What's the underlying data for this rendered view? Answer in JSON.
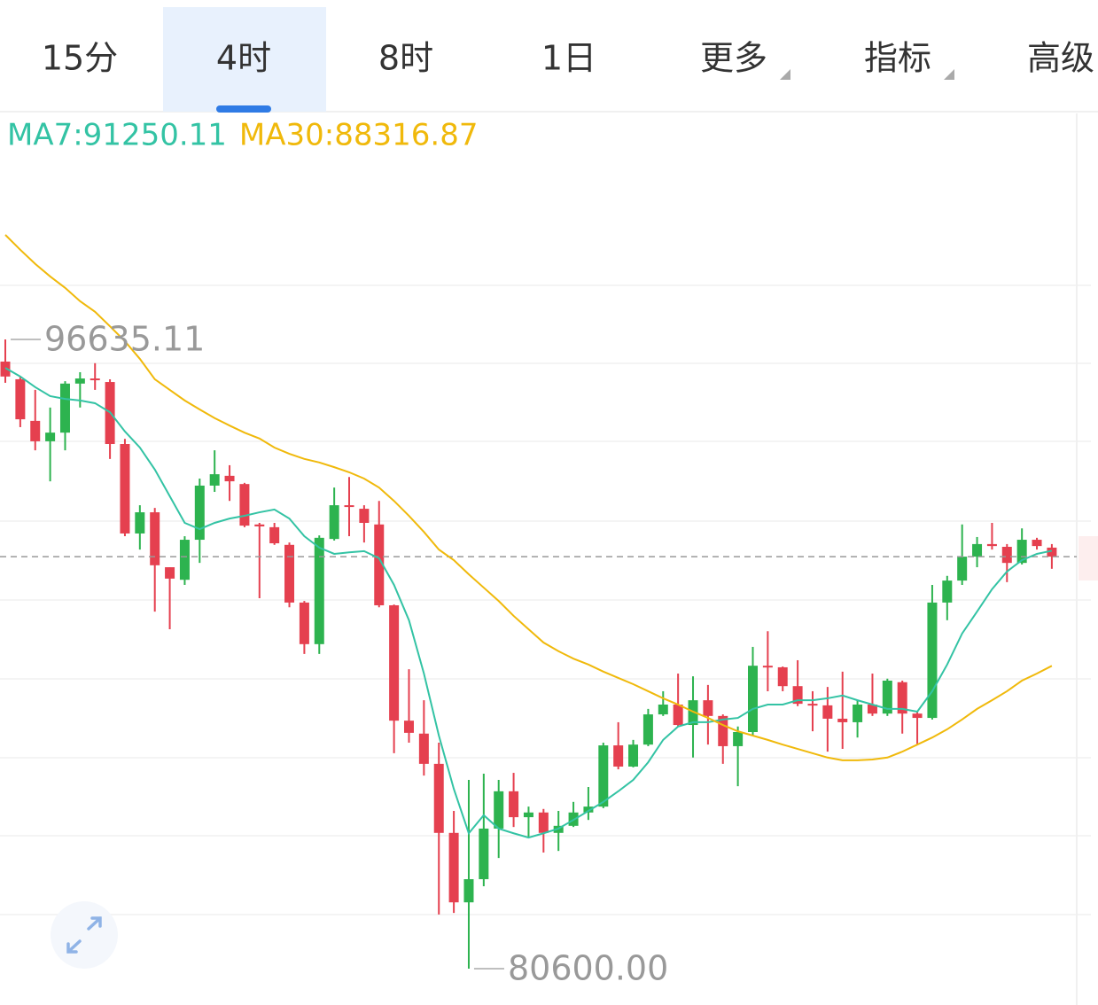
{
  "tabs": [
    "15分",
    "4时",
    "8时",
    "1日",
    "更多",
    "指标",
    "高级"
  ],
  "selected_tab": 1,
  "chart_data": {
    "type": "candlestick",
    "up_color": "#2db34f",
    "down_color": "#e5404f",
    "open": [
      96070,
      95620,
      94560,
      94040,
      94260,
      95510,
      95640,
      95550,
      93970,
      91690,
      92230,
      90830,
      90510,
      91530,
      92910,
      93160,
      92950,
      91920,
      91850,
      91400,
      89930,
      88870,
      91550,
      92410,
      92320,
      91920,
      89860,
      86920,
      86590,
      85820,
      84060,
      82290,
      82880,
      84170,
      85120,
      84460,
      84580,
      84060,
      84240,
      84580,
      84730,
      86290,
      85750,
      86310,
      87080,
      87330,
      86810,
      87440,
      87040,
      86270,
      86630,
      88320,
      88280,
      87800,
      87350,
      87310,
      86970,
      86880,
      87330,
      87100,
      87900,
      87100,
      86990,
      89930,
      90490,
      91100,
      91420,
      91350,
      90940,
      91530,
      91330
    ],
    "close": [
      95690,
      94600,
      94040,
      94260,
      95510,
      95640,
      95600,
      93970,
      91690,
      92230,
      90880,
      90540,
      91530,
      92910,
      93200,
      93020,
      91890,
      91870,
      91440,
      89930,
      88870,
      91580,
      92410,
      92370,
      91960,
      89860,
      86920,
      86610,
      85820,
      84060,
      82290,
      82880,
      84170,
      85120,
      84460,
      84580,
      84060,
      84240,
      84580,
      84730,
      86290,
      85750,
      86310,
      87080,
      87330,
      86810,
      87440,
      87040,
      86270,
      86630,
      88320,
      88280,
      87800,
      87350,
      87310,
      86970,
      86880,
      87330,
      87100,
      87940,
      87100,
      86990,
      89930,
      90490,
      91100,
      91420,
      91370,
      90940,
      91530,
      91370,
      91100
    ],
    "high": [
      96635.11,
      95690,
      95350,
      94900,
      95570,
      95800,
      96030,
      95620,
      94100,
      92410,
      92340,
      90830,
      91620,
      93090,
      93810,
      93430,
      92980,
      91960,
      91960,
      91460,
      89970,
      91640,
      92860,
      93130,
      92410,
      92520,
      89880,
      88230,
      87440,
      86360,
      84620,
      85410,
      85570,
      85410,
      85590,
      84730,
      84670,
      84620,
      84850,
      85230,
      86360,
      86880,
      86430,
      87220,
      87670,
      88120,
      88050,
      87830,
      87080,
      86770,
      88800,
      89200,
      88300,
      88460,
      87670,
      87780,
      88170,
      87440,
      88120,
      87990,
      87940,
      87170,
      90380,
      90610,
      91920,
      91600,
      91960,
      91420,
      91820,
      91580,
      91420
    ],
    "low": [
      95530,
      94400,
      93810,
      93020,
      93810,
      94900,
      95350,
      93590,
      91620,
      91280,
      89700,
      89250,
      90380,
      90940,
      92750,
      92520,
      91850,
      90040,
      91400,
      89810,
      88620,
      88620,
      91510,
      91620,
      91460,
      89810,
      86090,
      86360,
      85520,
      81980,
      82020,
      80600,
      82700,
      83420,
      84210,
      83940,
      83560,
      83600,
      84210,
      84390,
      84690,
      85680,
      85730,
      86270,
      87040,
      86770,
      85980,
      86310,
      85820,
      85250,
      86540,
      87670,
      87670,
      87290,
      86650,
      86130,
      86200,
      86490,
      87040,
      87040,
      86590,
      86310,
      86950,
      89480,
      90380,
      90830,
      91280,
      90450,
      90900,
      91280,
      90790
    ],
    "lines": [
      {
        "name": "MA7",
        "color": "#33c3a4",
        "legend_label": "MA7:91250.11",
        "values": [
          95910,
          95690,
          95420,
          95190,
          95120,
          95080,
          95010,
          94780,
          94290,
          93880,
          93320,
          92640,
          91960,
          91800,
          91960,
          92070,
          92140,
          92230,
          92300,
          92070,
          91620,
          91330,
          91170,
          91210,
          91240,
          91060,
          90380,
          89480,
          88120,
          86540,
          85180,
          84050,
          84510,
          84170,
          84050,
          83940,
          84050,
          84170,
          84390,
          84620,
          84850,
          85120,
          85410,
          85860,
          86430,
          86770,
          86880,
          86880,
          86950,
          86990,
          87220,
          87330,
          87330,
          87440,
          87440,
          87490,
          87560,
          87440,
          87330,
          87220,
          87220,
          87150,
          87670,
          88350,
          89140,
          89700,
          90270,
          90720,
          91010,
          91170,
          91250.11
        ]
      },
      {
        "name": "MA30",
        "color": "#f0b90b",
        "legend_label": "MA30:88316.87",
        "values": [
          99300,
          98920,
          98560,
          98240,
          97950,
          97610,
          97340,
          96970,
          96590,
          96140,
          95620,
          95350,
          95080,
          94850,
          94630,
          94440,
          94260,
          94110,
          93880,
          93720,
          93590,
          93500,
          93380,
          93250,
          93090,
          92860,
          92520,
          92140,
          91730,
          91280,
          91010,
          90650,
          90310,
          89970,
          89590,
          89250,
          88910,
          88690,
          88500,
          88350,
          88170,
          88010,
          87850,
          87670,
          87490,
          87330,
          87150,
          86990,
          86810,
          86650,
          86540,
          86430,
          86310,
          86200,
          86090,
          85980,
          85910,
          85910,
          85930,
          85980,
          86130,
          86310,
          86490,
          86700,
          86950,
          87220,
          87440,
          87670,
          87940,
          88120,
          88316.87
        ]
      }
    ],
    "annotations": [
      {
        "value": 96635.11,
        "label": "96635.11"
      },
      {
        "value": 80600,
        "label": "80600.00"
      }
    ]
  }
}
